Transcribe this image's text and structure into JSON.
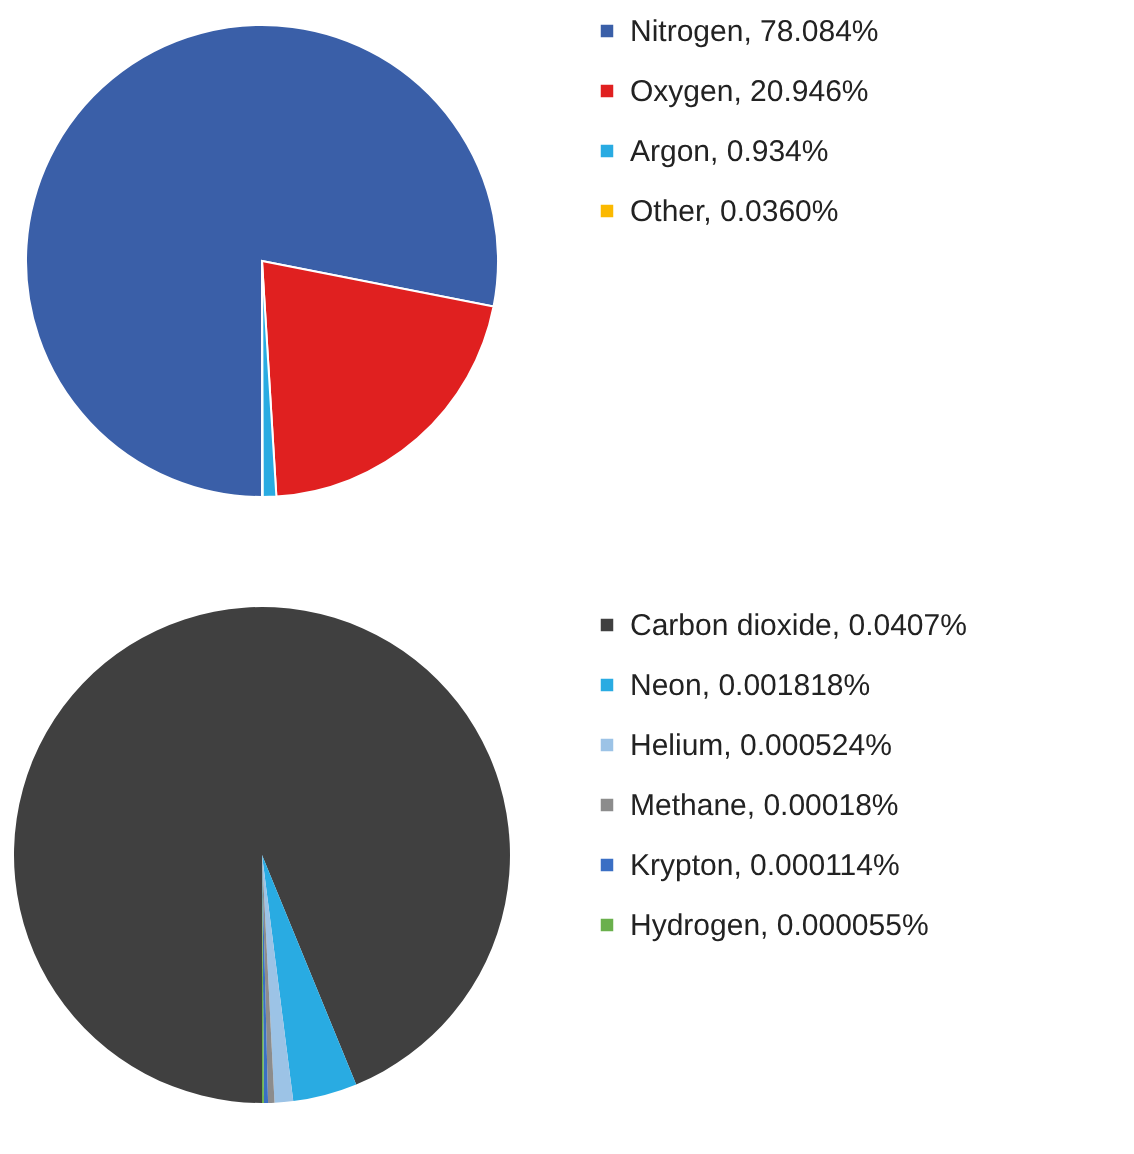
{
  "chart_data": [
    {
      "type": "pie",
      "categories": [
        "Nitrogen",
        "Oxygen",
        "Argon",
        "Other"
      ],
      "values": [
        78.084,
        20.946,
        0.934,
        0.036
      ],
      "value_labels": [
        "78.084%",
        "20.946%",
        "0.934%",
        "0.0360%"
      ],
      "colors": [
        "#3a5fa8",
        "#e02020",
        "#29abe2",
        "#fbb900"
      ],
      "legend": "right"
    },
    {
      "type": "pie",
      "categories": [
        "Carbon dioxide",
        "Neon",
        "Helium",
        "Methane",
        "Krypton",
        "Hydrogen"
      ],
      "values": [
        0.0407,
        0.001818,
        0.000524,
        0.00018,
        0.000114,
        5.5e-05
      ],
      "value_labels": [
        "0.0407%",
        "0.001818%",
        "0.000524%",
        "0.00018%",
        "0.000114%",
        "0.000055%"
      ],
      "colors": [
        "#404040",
        "#29abe2",
        "#9cc3e6",
        "#8c8c8c",
        "#3a6fc4",
        "#6ab04c"
      ],
      "legend": "right"
    }
  ]
}
